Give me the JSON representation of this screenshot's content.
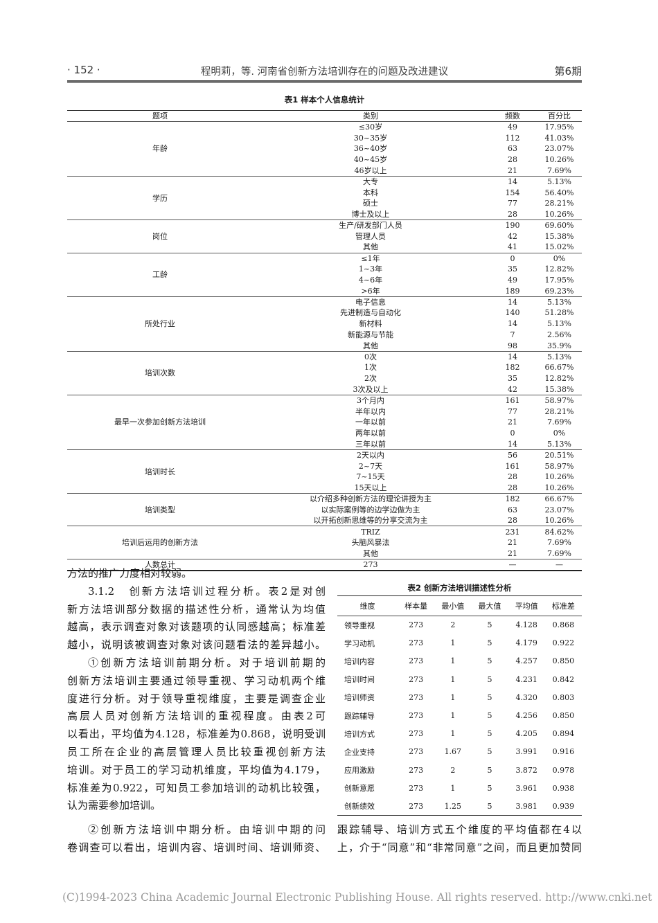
{
  "header": {
    "page": "· 152 ·",
    "title": "程明莉，等. 河南省创新方法培训存在的问题及改进建议",
    "issue": "第6期"
  },
  "table1": {
    "caption": "表1   样本个人信息统计",
    "headers": [
      "题项",
      "类别",
      "频数",
      "百分比"
    ],
    "groups": [
      {
        "item": "年龄",
        "rows": [
          [
            "≤30岁",
            "49",
            "17.95%"
          ],
          [
            "30~35岁",
            "112",
            "41.03%"
          ],
          [
            "36~40岁",
            "63",
            "23.07%"
          ],
          [
            "40~45岁",
            "28",
            "10.26%"
          ],
          [
            "46岁以上",
            "21",
            "7.69%"
          ]
        ]
      },
      {
        "item": "学历",
        "rows": [
          [
            "大专",
            "14",
            "5.13%"
          ],
          [
            "本科",
            "154",
            "56.40%"
          ],
          [
            "硕士",
            "77",
            "28.21%"
          ],
          [
            "博士及以上",
            "28",
            "10.26%"
          ]
        ]
      },
      {
        "item": "岗位",
        "rows": [
          [
            "生产/研发部门人员",
            "190",
            "69.60%"
          ],
          [
            "管理人员",
            "42",
            "15.38%"
          ],
          [
            "其他",
            "41",
            "15.02%"
          ]
        ]
      },
      {
        "item": "工龄",
        "rows": [
          [
            "≤1年",
            "0",
            "0%"
          ],
          [
            "1~3年",
            "35",
            "12.82%"
          ],
          [
            "4~6年",
            "49",
            "17.95%"
          ],
          [
            ">6年",
            "189",
            "69.23%"
          ]
        ]
      },
      {
        "item": "所处行业",
        "rows": [
          [
            "电子信息",
            "14",
            "5.13%"
          ],
          [
            "先进制造与自动化",
            "140",
            "51.28%"
          ],
          [
            "新材料",
            "14",
            "5.13%"
          ],
          [
            "新能源与节能",
            "7",
            "2.56%"
          ],
          [
            "其他",
            "98",
            "35.9%"
          ]
        ]
      },
      {
        "item": "培训次数",
        "rows": [
          [
            "0次",
            "14",
            "5.13%"
          ],
          [
            "1次",
            "182",
            "66.67%"
          ],
          [
            "2次",
            "35",
            "12.82%"
          ],
          [
            "3次及以上",
            "42",
            "15.38%"
          ]
        ]
      },
      {
        "item": "最早一次参加创新方法培训",
        "rows": [
          [
            "3个月内",
            "161",
            "58.97%"
          ],
          [
            "半年以内",
            "77",
            "28.21%"
          ],
          [
            "一年以前",
            "21",
            "7.69%"
          ],
          [
            "两年以前",
            "0",
            "0%"
          ],
          [
            "三年以前",
            "14",
            "5.13%"
          ]
        ]
      },
      {
        "item": "培训时长",
        "rows": [
          [
            "2天以内",
            "56",
            "20.51%"
          ],
          [
            "2~7天",
            "161",
            "58.97%"
          ],
          [
            "7~15天",
            "28",
            "10.26%"
          ],
          [
            "15天以上",
            "28",
            "10.26%"
          ]
        ]
      },
      {
        "item": "培训类型",
        "rows": [
          [
            "以介绍多种创新方法的理论讲授为主",
            "182",
            "66.67%"
          ],
          [
            "以实际案例等的边学边做为主",
            "63",
            "23.07%"
          ],
          [
            "以开拓创新思维等的分享交流为主",
            "28",
            "10.26%"
          ]
        ]
      },
      {
        "item": "培训后运用的创新方法",
        "rows": [
          [
            "TRIZ",
            "231",
            "84.62%"
          ],
          [
            "头脑风暴法",
            "21",
            "7.69%"
          ],
          [
            "其他",
            "21",
            "7.69%"
          ]
        ]
      }
    ],
    "total": {
      "label": "人数总计",
      "value": "273",
      "freq": "—",
      "pct": "—"
    }
  },
  "table2": {
    "caption": "表2   创新方法培训描述性分析",
    "headers": [
      "维度",
      "样本量",
      "最小值",
      "最大值",
      "平均值",
      "标准差"
    ],
    "rows": [
      [
        "领导重视",
        "273",
        "2",
        "5",
        "4.128",
        "0.868"
      ],
      [
        "学习动机",
        "273",
        "1",
        "5",
        "4.179",
        "0.922"
      ],
      [
        "培训内容",
        "273",
        "1",
        "5",
        "4.257",
        "0.850"
      ],
      [
        "培训时间",
        "273",
        "1",
        "5",
        "4.231",
        "0.842"
      ],
      [
        "培训师资",
        "273",
        "1",
        "5",
        "4.320",
        "0.803"
      ],
      [
        "跟踪辅导",
        "273",
        "1",
        "5",
        "4.256",
        "0.850"
      ],
      [
        "培训方式",
        "273",
        "1",
        "5",
        "4.205",
        "0.894"
      ],
      [
        "企业支持",
        "273",
        "1.67",
        "5",
        "3.991",
        "0.916"
      ],
      [
        "应用激励",
        "273",
        "2",
        "5",
        "3.872",
        "0.978"
      ],
      [
        "创新意愿",
        "273",
        "1",
        "5",
        "3.961",
        "0.938"
      ],
      [
        "创新绩效",
        "273",
        "1.25",
        "5",
        "3.981",
        "0.939"
      ]
    ]
  },
  "body_left": [
    {
      "text": "方法的推广力度相对较弱。",
      "cls": "last"
    },
    {
      "text": "3.1.2　创新方法培训过程分析。表2是对创",
      "cls": "ind"
    },
    {
      "text": "新方法培训部分数据的描述性分析，通常认为均值",
      "cls": ""
    },
    {
      "text": "越高，表示调查对象对该题项的认同感越高；标准差",
      "cls": ""
    },
    {
      "text": "越小，说明该被调查对象对该问题看法的差异越小。",
      "cls": ""
    },
    {
      "text": "①创新方法培训前期分析。对于培训前期的",
      "cls": "ind"
    },
    {
      "text": "创新方法培训主要通过领导重视、学习动机两个维",
      "cls": ""
    },
    {
      "text": "度进行分析。对于领导重视维度，主要是调查企业",
      "cls": ""
    },
    {
      "text": "高层人员对创新方法培训的重视程度。由表2可",
      "cls": ""
    },
    {
      "text": "以看出，平均值为4.128，标准差为0.868，说明受训",
      "cls": ""
    },
    {
      "text": "员工所在企业的高层管理人员比较重视创新方法",
      "cls": ""
    },
    {
      "text": "培训。对于员工的学习动机维度，平均值为4.179，",
      "cls": ""
    },
    {
      "text": "标准差为0.922，可知员工参加培训的动机比较强，",
      "cls": ""
    },
    {
      "text": "认为需要参加培训。",
      "cls": "last"
    }
  ],
  "body_left2": [
    {
      "text": "②创新方法培训中期分析。由培训中期的问",
      "cls": "ind"
    },
    {
      "text": "卷调查可以看出，培训内容、培训时间、培训师资、",
      "cls": ""
    }
  ],
  "body_right": [
    {
      "text": "跟踪辅导、培训方式五个维度的平均值都在4以",
      "cls": ""
    },
    {
      "text": "上，介于“同意”和“非常同意”之间，而且更加赞同",
      "cls": ""
    }
  ],
  "footer": "(C)1994-2023 China Academic Journal Electronic Publishing House. All rights reserved.    http://www.cnki.net"
}
